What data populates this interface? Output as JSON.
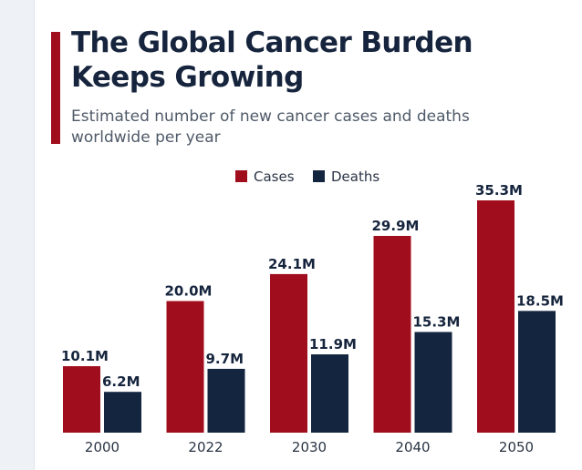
{
  "header": {
    "title": "The Global Cancer Burden Keeps Growing",
    "subtitle": "Estimated number of new cancer cases and deaths worldwide per year"
  },
  "colors": {
    "cases": "#a00d1c",
    "deaths": "#14263f",
    "accent": "#a00d1c"
  },
  "chart_data": {
    "type": "bar",
    "title": "The Global Cancer Burden Keeps Growing",
    "subtitle": "Estimated number of new cancer cases and deaths worldwide per year",
    "categories": [
      "2000",
      "2022",
      "2030",
      "2040",
      "2050"
    ],
    "series": [
      {
        "name": "Cases",
        "values": [
          10.1,
          20.0,
          24.1,
          29.9,
          35.3
        ],
        "labels": [
          "10.1M",
          "20.0M",
          "24.1M",
          "29.9M",
          "35.3M"
        ]
      },
      {
        "name": "Deaths",
        "values": [
          6.2,
          9.7,
          11.9,
          15.3,
          18.5
        ],
        "labels": [
          "6.2M",
          "9.7M",
          "11.9M",
          "15.3M",
          "18.5M"
        ]
      }
    ],
    "xlabel": "",
    "ylabel": "",
    "ylim": [
      0,
      35.3
    ],
    "grid": false,
    "legend": "top-center"
  }
}
